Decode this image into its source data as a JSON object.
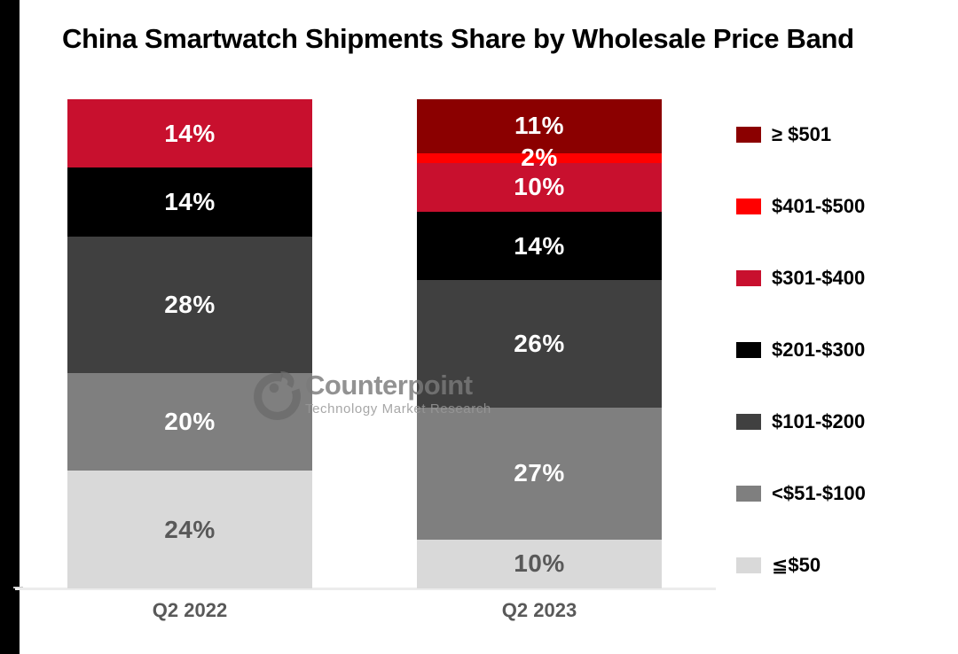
{
  "title": "China Smartwatch Shipments Share by Wholesale Price Band",
  "watermark": {
    "brand": "Counterpoint",
    "tagline": "Technology Market Research"
  },
  "chart_data": {
    "type": "bar",
    "stacked": true,
    "value_unit": "%",
    "title": "China Smartwatch Shipments Share by Wholesale Price Band",
    "categories": [
      "Q2 2022",
      "Q2 2023"
    ],
    "series": [
      {
        "name": "≥ $501",
        "color": "#8B0000",
        "values": [
          0,
          11
        ],
        "dark_label": false
      },
      {
        "name": "$401-$500",
        "color": "#FF0000",
        "values": [
          0,
          2
        ],
        "dark_label": false
      },
      {
        "name": "$301-$400",
        "color": "#C8102E",
        "values": [
          14,
          10
        ],
        "dark_label": false
      },
      {
        "name": "$201-$300",
        "color": "#000000",
        "values": [
          14,
          14
        ],
        "dark_label": false
      },
      {
        "name": "$101-$200",
        "color": "#404040",
        "values": [
          28,
          26
        ],
        "dark_label": false
      },
      {
        "name": "<$51-$100",
        "color": "#7F7F7F",
        "values": [
          20,
          27
        ],
        "dark_label": false
      },
      {
        "name": "≦$50",
        "color": "#D9D9D9",
        "values": [
          24,
          10
        ],
        "dark_label": true
      }
    ],
    "legend_position": "right",
    "ylim": [
      0,
      100
    ],
    "grid": false,
    "label_colors": {
      "on_dark": "#FFFFFF",
      "on_light": "#595959"
    }
  }
}
